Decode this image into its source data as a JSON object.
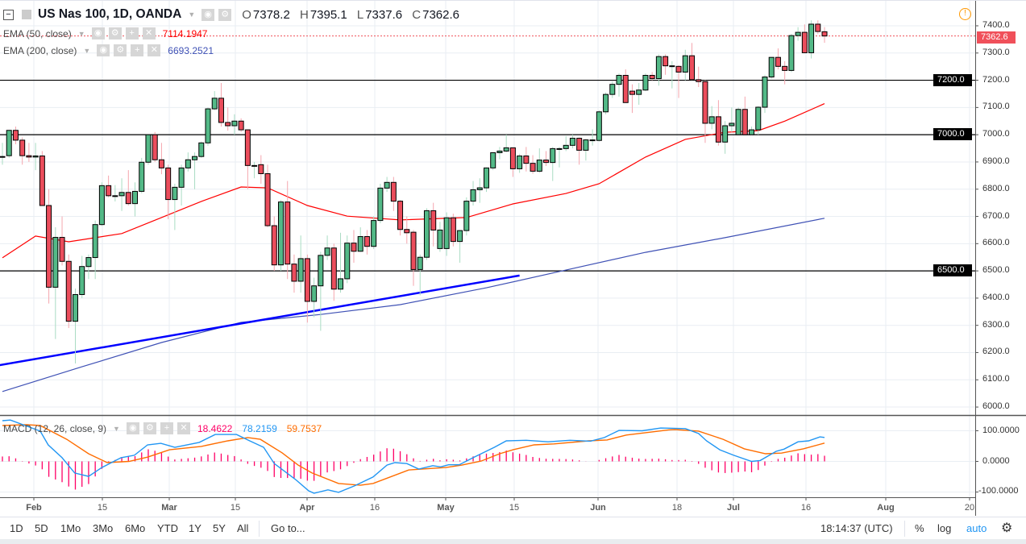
{
  "header": {
    "title": "US Nas 100, 1D, OANDA",
    "o_label": "O",
    "o": "7378.2",
    "h_label": "H",
    "h": "7395.1",
    "l_label": "L",
    "l": "7337.6",
    "c_label": "C",
    "c": "7362.6"
  },
  "indicators": {
    "ema50": {
      "label": "EMA (50, close)",
      "value": "7114.1947",
      "color": "#ff0000"
    },
    "ema200": {
      "label": "EMA (200, close)",
      "value": "6693.2521",
      "color": "#3f51b5"
    },
    "macd": {
      "label": "MACD (12, 26, close, 9)",
      "hist_value": "18.4622",
      "macd_value": "78.2159",
      "signal_value": "59.7537",
      "hist_color": "#ff0066",
      "macd_color": "#2196f3",
      "signal_color": "#ff6d00"
    }
  },
  "price_axis": {
    "labels": [
      "7400.0",
      "7300.0",
      "7200.0",
      "7100.0",
      "7000.0",
      "6900.0",
      "6800.0",
      "6700.0",
      "6600.0",
      "6500.0",
      "6400.0",
      "6300.0",
      "6200.0",
      "6100.0",
      "6000.0"
    ],
    "last_price": "7362.6",
    "level_tags": [
      "7200.0",
      "7000.0",
      "6500.0"
    ]
  },
  "macd_axis": {
    "labels": [
      "100.0000",
      "0.0000",
      "-100.0000"
    ]
  },
  "time_axis": {
    "labels": [
      "Feb",
      "15",
      "Mar",
      "15",
      "Apr",
      "16",
      "May",
      "15",
      "Jun",
      "18",
      "Jul",
      "16",
      "Aug",
      "20"
    ]
  },
  "toolbar": {
    "ranges": [
      "1D",
      "5D",
      "1Mo",
      "3Mo",
      "6Mo",
      "YTD",
      "1Y",
      "5Y",
      "All"
    ],
    "goto": "Go to...",
    "clock": "18:14:37 (UTC)",
    "percent": "%",
    "log": "log",
    "auto": "auto"
  },
  "colors": {
    "up": "#53b987",
    "down": "#eb4d5c",
    "up_wick": "#a9dcc3",
    "down_wick": "#f5a6ae",
    "trendline": "#0000ff",
    "last_price": "#f0505a",
    "auto": "#2196f3"
  },
  "chart_data": {
    "type": "candlestick",
    "ylim": [
      5960,
      7460
    ],
    "current_price": 7362.6,
    "horizontal_levels": [
      7200,
      7000,
      6500
    ],
    "trendline": [
      [
        -0.4,
        6154
      ],
      [
        78,
        6483
      ]
    ],
    "ohlc": [
      [
        6920,
        6970,
        6890,
        6920
      ],
      [
        6923,
        7018,
        6915,
        7016
      ],
      [
        7016,
        7030,
        6965,
        6980
      ],
      [
        6980,
        6990,
        6890,
        6923
      ],
      [
        6923,
        6970,
        6900,
        6918
      ],
      [
        6918,
        6970,
        6870,
        6922
      ],
      [
        6922,
        6940,
        6740,
        6740
      ],
      [
        6740,
        6800,
        6380,
        6440
      ],
      [
        6440,
        6660,
        6250,
        6623
      ],
      [
        6623,
        6700,
        6520,
        6535
      ],
      [
        6535,
        6560,
        6290,
        6315
      ],
      [
        6315,
        6435,
        6160,
        6413
      ],
      [
        6413,
        6555,
        6400,
        6516
      ],
      [
        6516,
        6560,
        6470,
        6549
      ],
      [
        6549,
        6685,
        6470,
        6670
      ],
      [
        6670,
        6825,
        6665,
        6813
      ],
      [
        6813,
        6850,
        6770,
        6776
      ],
      [
        6776,
        6815,
        6755,
        6776
      ],
      [
        6776,
        6840,
        6720,
        6788
      ],
      [
        6788,
        6870,
        6740,
        6747
      ],
      [
        6747,
        6825,
        6700,
        6792
      ],
      [
        6792,
        6915,
        6785,
        6899
      ],
      [
        6899,
        7000,
        6890,
        7000
      ],
      [
        7000,
        7010,
        6900,
        6908
      ],
      [
        6908,
        6970,
        6855,
        6878
      ],
      [
        6878,
        6890,
        6690,
        6762
      ],
      [
        6762,
        6820,
        6650,
        6807
      ],
      [
        6807,
        6890,
        6740,
        6878
      ],
      [
        6878,
        6935,
        6865,
        6908
      ],
      [
        6908,
        6935,
        6800,
        6920
      ],
      [
        6920,
        6975,
        6915,
        6970
      ],
      [
        6970,
        7100,
        6960,
        7095
      ],
      [
        7095,
        7160,
        7090,
        7134
      ],
      [
        7134,
        7190,
        7030,
        7045
      ],
      [
        7045,
        7100,
        7015,
        7033
      ],
      [
        7033,
        7075,
        7000,
        7050
      ],
      [
        7050,
        7060,
        7010,
        7018
      ],
      [
        7018,
        7018,
        6800,
        6887
      ],
      [
        6887,
        6900,
        6840,
        6887
      ],
      [
        6890,
        6925,
        6820,
        6857
      ],
      [
        6857,
        6890,
        6660,
        6666
      ],
      [
        6666,
        6700,
        6500,
        6522
      ],
      [
        6522,
        6760,
        6500,
        6753
      ],
      [
        6753,
        6830,
        6470,
        6525
      ],
      [
        6525,
        6560,
        6420,
        6462
      ],
      [
        6462,
        6630,
        6420,
        6545
      ],
      [
        6545,
        6560,
        6310,
        6388
      ],
      [
        6388,
        6475,
        6330,
        6445
      ],
      [
        6445,
        6570,
        6280,
        6557
      ],
      [
        6557,
        6630,
        6540,
        6584
      ],
      [
        6584,
        6600,
        6390,
        6433
      ],
      [
        6433,
        6640,
        6420,
        6471
      ],
      [
        6471,
        6630,
        6455,
        6602
      ],
      [
        6602,
        6650,
        6530,
        6572
      ],
      [
        6572,
        6660,
        6570,
        6626
      ],
      [
        6626,
        6650,
        6560,
        6590
      ],
      [
        6590,
        6700,
        6580,
        6685
      ],
      [
        6685,
        6820,
        6675,
        6804
      ],
      [
        6804,
        6845,
        6790,
        6825
      ],
      [
        6825,
        6845,
        6720,
        6756
      ],
      [
        6756,
        6760,
        6630,
        6652
      ],
      [
        6652,
        6700,
        6600,
        6640
      ],
      [
        6642,
        6650,
        6445,
        6505
      ],
      [
        6505,
        6560,
        6410,
        6550
      ],
      [
        6550,
        6730,
        6540,
        6721
      ],
      [
        6721,
        6750,
        6590,
        6650
      ],
      [
        6582,
        6680,
        6570,
        6650
      ],
      [
        6582,
        6715,
        6555,
        6695
      ],
      [
        6695,
        6710,
        6590,
        6608
      ],
      [
        6608,
        6650,
        6530,
        6648
      ],
      [
        6648,
        6770,
        6630,
        6756
      ],
      [
        6756,
        6830,
        6740,
        6798
      ],
      [
        6798,
        6840,
        6750,
        6805
      ],
      [
        6805,
        6880,
        6790,
        6878
      ],
      [
        6878,
        6935,
        6870,
        6934
      ],
      [
        6934,
        6955,
        6910,
        6940
      ],
      [
        6940,
        7000,
        6935,
        6952
      ],
      [
        6952,
        6952,
        6845,
        6875
      ],
      [
        6875,
        6930,
        6860,
        6922
      ],
      [
        6922,
        6955,
        6865,
        6895
      ],
      [
        6895,
        6925,
        6857,
        6866
      ],
      [
        6866,
        6950,
        6860,
        6907
      ],
      [
        6907,
        6940,
        6885,
        6898
      ],
      [
        6898,
        6955,
        6830,
        6949
      ],
      [
        6949,
        6955,
        6880,
        6949
      ],
      [
        6949,
        6995,
        6940,
        6961
      ],
      [
        6961,
        7000,
        6950,
        6987
      ],
      [
        6987,
        6990,
        6890,
        6943
      ],
      [
        6943,
        6985,
        6905,
        6981
      ],
      [
        6981,
        7020,
        6960,
        6981
      ],
      [
        6979,
        7090,
        6975,
        7084
      ],
      [
        7084,
        7155,
        7075,
        7148
      ],
      [
        7148,
        7195,
        7135,
        7185
      ],
      [
        7185,
        7225,
        7140,
        7218
      ],
      [
        7218,
        7240,
        7118,
        7118
      ],
      [
        7160,
        7185,
        7080,
        7148
      ],
      [
        7148,
        7190,
        7110,
        7164
      ],
      [
        7164,
        7225,
        7160,
        7218
      ],
      [
        7218,
        7230,
        7200,
        7206
      ],
      [
        7206,
        7295,
        7180,
        7287
      ],
      [
        7287,
        7295,
        7220,
        7253
      ],
      [
        7253,
        7270,
        7170,
        7253
      ],
      [
        7251,
        7255,
        7135,
        7230
      ],
      [
        7230,
        7312,
        7200,
        7290
      ],
      [
        7290,
        7337,
        7200,
        7202
      ],
      [
        7202,
        7250,
        7175,
        7195
      ],
      [
        7195,
        7200,
        6970,
        7042
      ],
      [
        7042,
        7105,
        7020,
        7066
      ],
      [
        7066,
        7127,
        6960,
        6973
      ],
      [
        6973,
        7050,
        6930,
        7033
      ],
      [
        7033,
        7100,
        7010,
        7042
      ],
      [
        7000,
        7100,
        7000,
        7093
      ],
      [
        7093,
        7140,
        7000,
        7000
      ],
      [
        7000,
        7030,
        6998,
        7018
      ],
      [
        7018,
        7105,
        7000,
        7101
      ],
      [
        7101,
        7220,
        7080,
        7212
      ],
      [
        7212,
        7285,
        7205,
        7284
      ],
      [
        7284,
        7317,
        7240,
        7251
      ],
      [
        7251,
        7270,
        7185,
        7236
      ],
      [
        7236,
        7370,
        7230,
        7364
      ],
      [
        7364,
        7395,
        7345,
        7376
      ],
      [
        7376,
        7405,
        7300,
        7301
      ],
      [
        7301,
        7420,
        7280,
        7406
      ],
      [
        7406,
        7420,
        7370,
        7379
      ],
      [
        7378.2,
        7395.1,
        7337.6,
        7362.6
      ]
    ],
    "ema50": [
      [
        0,
        6548
      ],
      [
        5,
        6628
      ],
      [
        10,
        6607
      ],
      [
        18,
        6637
      ],
      [
        24,
        6696
      ],
      [
        30,
        6755
      ],
      [
        36,
        6808
      ],
      [
        40,
        6805
      ],
      [
        46,
        6740
      ],
      [
        52,
        6701
      ],
      [
        60,
        6687
      ],
      [
        70,
        6696
      ],
      [
        77,
        6746
      ],
      [
        85,
        6784
      ],
      [
        90,
        6820
      ],
      [
        97,
        6918
      ],
      [
        103,
        6983
      ],
      [
        109,
        7009
      ],
      [
        114,
        7015
      ],
      [
        118,
        7050
      ],
      [
        124,
        7114.19
      ]
    ],
    "ema200": [
      [
        0,
        6057
      ],
      [
        12,
        6148
      ],
      [
        24,
        6237
      ],
      [
        36,
        6311
      ],
      [
        48,
        6340
      ],
      [
        60,
        6376
      ],
      [
        73,
        6438
      ],
      [
        85,
        6503
      ],
      [
        97,
        6568
      ],
      [
        109,
        6622
      ],
      [
        124,
        6693.25
      ]
    ],
    "macd": {
      "ylim": [
        -115,
        145
      ],
      "macd_line": [
        [
          0,
          133
        ],
        [
          1.2,
          135
        ],
        [
          5.7,
          99
        ],
        [
          6.9,
          54
        ],
        [
          9,
          12
        ],
        [
          10.9,
          -38
        ],
        [
          13,
          -49
        ],
        [
          15,
          -20
        ],
        [
          17.9,
          12
        ],
        [
          19.9,
          20
        ],
        [
          21.9,
          54
        ],
        [
          23.9,
          59
        ],
        [
          26,
          46
        ],
        [
          29.7,
          62
        ],
        [
          32.1,
          88
        ],
        [
          35.3,
          88
        ],
        [
          37.3,
          67
        ],
        [
          39.4,
          46
        ],
        [
          41,
          -7
        ],
        [
          44.2,
          -59
        ],
        [
          46.2,
          -96
        ],
        [
          47,
          -104
        ],
        [
          49.1,
          -93
        ],
        [
          50.7,
          -101
        ],
        [
          53.1,
          -80
        ],
        [
          55.9,
          -51
        ],
        [
          58,
          -12
        ],
        [
          59.2,
          -4
        ],
        [
          61,
          -7
        ],
        [
          62.8,
          -25
        ],
        [
          64.9,
          -14
        ],
        [
          66.1,
          -18
        ],
        [
          67.3,
          -11
        ],
        [
          68.9,
          -11
        ],
        [
          71,
          12
        ],
        [
          74.2,
          46
        ],
        [
          76,
          67
        ],
        [
          79,
          69
        ],
        [
          82.3,
          64
        ],
        [
          85.6,
          69
        ],
        [
          88.7,
          66
        ],
        [
          90.8,
          78
        ],
        [
          93,
          101
        ],
        [
          96.5,
          100
        ],
        [
          99.3,
          109
        ],
        [
          103,
          107
        ],
        [
          105,
          91
        ],
        [
          106.2,
          67
        ],
        [
          108.2,
          38
        ],
        [
          110.3,
          20
        ],
        [
          113,
          0
        ],
        [
          114.3,
          3
        ],
        [
          116.7,
          33
        ],
        [
          117.9,
          40
        ],
        [
          120,
          64
        ],
        [
          121.6,
          67
        ],
        [
          123.3,
          80
        ],
        [
          124,
          78.2159
        ]
      ],
      "signal_line": [
        [
          0,
          117
        ],
        [
          3.6,
          120
        ],
        [
          5.7,
          117
        ],
        [
          9.7,
          72
        ],
        [
          13,
          25
        ],
        [
          15.8,
          -4
        ],
        [
          19.1,
          0
        ],
        [
          21.9,
          14
        ],
        [
          25.2,
          38
        ],
        [
          30,
          49
        ],
        [
          34,
          67
        ],
        [
          37,
          78
        ],
        [
          38.9,
          72
        ],
        [
          42.2,
          28
        ],
        [
          44.6,
          -12
        ],
        [
          46.7,
          -38
        ],
        [
          50.7,
          -72
        ],
        [
          54,
          -78
        ],
        [
          55.9,
          -72
        ],
        [
          61.3,
          -28
        ],
        [
          66.9,
          -20
        ],
        [
          69.3,
          -12
        ],
        [
          72.2,
          1
        ],
        [
          75,
          25
        ],
        [
          77,
          38
        ],
        [
          80.2,
          54
        ],
        [
          83.2,
          57
        ],
        [
          88.4,
          67
        ],
        [
          91.2,
          70
        ],
        [
          94.1,
          86
        ],
        [
          100.5,
          103
        ],
        [
          101.4,
          104
        ],
        [
          105,
          99
        ],
        [
          108.7,
          72
        ],
        [
          111.9,
          41
        ],
        [
          115.1,
          25
        ],
        [
          117.5,
          27
        ],
        [
          120.8,
          41
        ],
        [
          124,
          59.7537
        ]
      ]
    }
  }
}
